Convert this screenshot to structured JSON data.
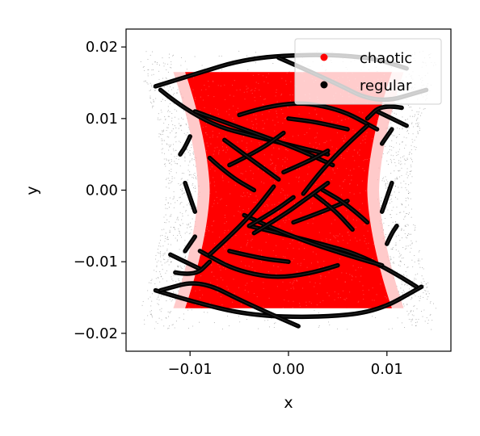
{
  "chart_data": {
    "type": "scatter",
    "title": "",
    "xlabel": "x",
    "ylabel": "y",
    "xlim": [
      -0.0165,
      0.0165
    ],
    "ylim": [
      -0.0225,
      0.0225
    ],
    "x_ticks": [
      {
        "value": -0.01,
        "label": "−0.01"
      },
      {
        "value": 0.0,
        "label": "0.00"
      },
      {
        "value": 0.01,
        "label": "0.01"
      }
    ],
    "y_ticks": [
      {
        "value": 0.02,
        "label": "0.02"
      },
      {
        "value": 0.01,
        "label": "0.01"
      },
      {
        "value": 0.0,
        "label": "0.00"
      },
      {
        "value": -0.01,
        "label": "−0.01"
      },
      {
        "value": -0.02,
        "label": "−0.02"
      }
    ],
    "grid": false,
    "legend": {
      "placement": "top-right"
    },
    "series": [
      {
        "name": "chaotic",
        "color": "#ff0000",
        "region": {
          "y_range": [
            -0.0165,
            0.0165
          ],
          "half_width_at_y_edge": 0.0105,
          "half_width_at_center": 0.008
        }
      },
      {
        "name": "regular",
        "color": "#000000",
        "orbits": [
          {
            "points": [
              [
                -0.0135,
                0.0145
              ],
              [
                -0.01,
                0.016
              ],
              [
                -0.004,
                0.0185
              ],
              [
                0.003,
                0.019
              ],
              [
                0.0085,
                0.0185
              ],
              [
                0.012,
                0.017
              ]
            ]
          },
          {
            "points": [
              [
                -0.0135,
                -0.014
              ],
              [
                -0.01,
                -0.0155
              ],
              [
                -0.004,
                -0.0175
              ],
              [
                0.003,
                -0.0178
              ],
              [
                0.009,
                -0.017
              ],
              [
                0.0135,
                -0.0135
              ]
            ]
          },
          {
            "points": [
              [
                -0.001,
                0.0185
              ],
              [
                0.004,
                0.0155
              ],
              [
                0.009,
                0.012
              ],
              [
                0.014,
                0.014
              ]
            ]
          },
          {
            "points": [
              [
                0.001,
                -0.019
              ],
              [
                -0.004,
                -0.016
              ],
              [
                -0.009,
                -0.0125
              ],
              [
                -0.013,
                -0.014
              ]
            ]
          },
          {
            "points": [
              [
                -0.013,
                0.014
              ],
              [
                -0.009,
                0.0095
              ],
              [
                -0.002,
                0.007
              ],
              [
                0.004,
                0.005
              ]
            ]
          },
          {
            "points": [
              [
                0.013,
                -0.0135
              ],
              [
                0.0085,
                -0.0095
              ],
              [
                0.002,
                -0.007
              ],
              [
                -0.004,
                -0.005
              ]
            ]
          },
          {
            "points": [
              [
                -0.0095,
                0.011
              ],
              [
                -0.0045,
                0.0085
              ],
              [
                0.0005,
                0.006
              ],
              [
                0.0045,
                0.0035
              ]
            ]
          },
          {
            "points": [
              [
                0.0095,
                -0.0105
              ],
              [
                0.0045,
                -0.0085
              ],
              [
                -0.0005,
                -0.006
              ],
              [
                -0.0045,
                -0.0035
              ]
            ]
          },
          {
            "points": [
              [
                -0.005,
                0.0105
              ],
              [
                -0.0005,
                0.0125
              ],
              [
                0.005,
                0.0115
              ],
              [
                0.009,
                0.0085
              ]
            ]
          },
          {
            "points": [
              [
                0.005,
                -0.0105
              ],
              [
                0.0005,
                -0.0125
              ],
              [
                -0.005,
                -0.0115
              ],
              [
                -0.009,
                -0.0085
              ]
            ]
          },
          {
            "points": [
              [
                -0.006,
                0.0035
              ],
              [
                -0.003,
                0.0055
              ],
              [
                -0.0005,
                0.008
              ]
            ]
          },
          {
            "points": [
              [
                -0.0065,
                0.007
              ],
              [
                -0.0035,
                0.004
              ],
              [
                -0.001,
                0.0015
              ]
            ]
          },
          {
            "points": [
              [
                0.0005,
                -0.0045
              ],
              [
                0.0035,
                -0.003
              ],
              [
                0.006,
                -0.0015
              ]
            ]
          },
          {
            "points": [
              [
                0.0025,
                -0.0005
              ],
              [
                0.0045,
                -0.0025
              ],
              [
                0.0065,
                -0.0055
              ]
            ]
          },
          {
            "points": [
              [
                -0.0005,
                0.0025
              ],
              [
                0.002,
                0.004
              ],
              [
                0.004,
                0.0055
              ]
            ]
          },
          {
            "points": [
              [
                -0.004,
                -0.005
              ],
              [
                -0.0015,
                -0.003
              ],
              [
                0.0005,
                -0.001
              ]
            ]
          },
          {
            "points": [
              [
                -0.0035,
                -0.006
              ],
              [
                -0.0005,
                -0.0035
              ],
              [
                0.002,
                -0.001
              ],
              [
                0.004,
                0.001
              ]
            ]
          },
          {
            "points": [
              [
                0.008,
                -0.0045
              ],
              [
                0.006,
                -0.002
              ],
              [
                0.0035,
                0.0
              ]
            ]
          },
          {
            "points": [
              [
                -0.008,
                0.0045
              ],
              [
                -0.006,
                0.002
              ],
              [
                -0.0035,
                0.0
              ]
            ]
          },
          {
            "points": [
              [
                0.008,
                0.009
              ],
              [
                0.006,
                0.0065
              ],
              [
                0.0035,
                0.003
              ],
              [
                0.0015,
                -0.0005
              ]
            ]
          },
          {
            "points": [
              [
                -0.008,
                -0.009
              ],
              [
                -0.006,
                -0.0065
              ],
              [
                -0.0035,
                -0.003
              ],
              [
                -0.0015,
                0.0005
              ]
            ]
          },
          {
            "points": [
              [
                -0.0105,
                0.001
              ],
              [
                -0.01,
                -0.001
              ],
              [
                -0.0095,
                -0.003
              ]
            ]
          },
          {
            "points": [
              [
                0.0105,
                0.001
              ],
              [
                0.01,
                -0.001
              ],
              [
                0.0095,
                -0.003
              ]
            ]
          },
          {
            "points": [
              [
                -0.01,
                0.0075
              ],
              [
                -0.0105,
                0.006
              ],
              [
                -0.011,
                0.005
              ]
            ]
          },
          {
            "points": [
              [
                0.01,
                -0.0075
              ],
              [
                0.0105,
                -0.006
              ],
              [
                0.011,
                -0.005
              ]
            ]
          },
          {
            "points": [
              [
                -0.0095,
                -0.0065
              ],
              [
                -0.01,
                -0.0075
              ],
              [
                -0.0105,
                -0.0085
              ]
            ]
          },
          {
            "points": [
              [
                0.0095,
                0.0065
              ],
              [
                0.01,
                0.0075
              ],
              [
                0.0105,
                0.0085
              ]
            ]
          },
          {
            "points": [
              [
                -0.012,
                -0.009
              ],
              [
                -0.0105,
                -0.01
              ],
              [
                -0.009,
                -0.011
              ]
            ]
          },
          {
            "points": [
              [
                0.012,
                0.009
              ],
              [
                0.0105,
                0.01
              ],
              [
                0.009,
                0.011
              ]
            ]
          },
          {
            "points": [
              [
                -0.0115,
                -0.0115
              ],
              [
                -0.0095,
                -0.012
              ],
              [
                -0.008,
                -0.01
              ]
            ]
          },
          {
            "points": [
              [
                0.0115,
                0.0115
              ],
              [
                0.0095,
                0.012
              ],
              [
                0.008,
                0.01
              ]
            ]
          },
          {
            "points": [
              [
                -0.006,
                -0.0085
              ],
              [
                -0.003,
                -0.0095
              ],
              [
                0.0,
                -0.01
              ]
            ]
          },
          {
            "points": [
              [
                0.006,
                0.0085
              ],
              [
                0.003,
                0.0095
              ],
              [
                0.0,
                0.01
              ]
            ]
          }
        ]
      }
    ]
  }
}
